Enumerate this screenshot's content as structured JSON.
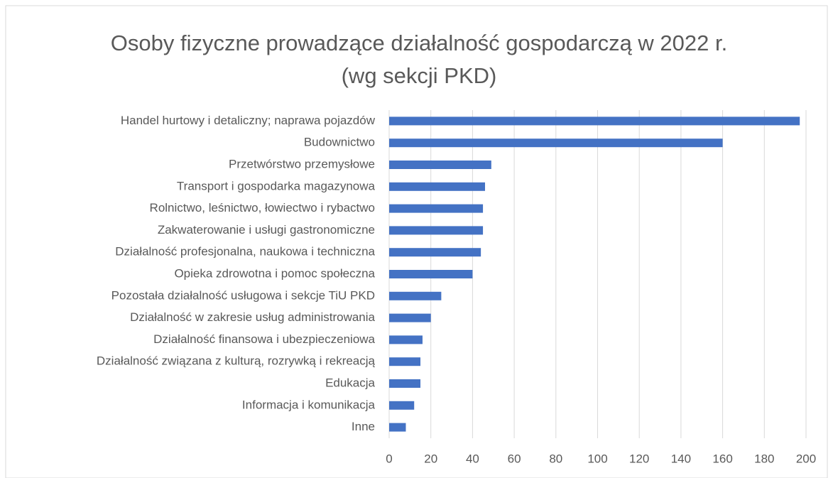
{
  "chart_data": {
    "type": "bar",
    "orientation": "horizontal",
    "title": "Osoby fizyczne prowadzące działalność gospodarczą w 2022 r. (wg sekcji PKD)",
    "categories": [
      "Handel hurtowy i detaliczny; naprawa pojazdów",
      "Budownictwo",
      "Przetwórstwo przemysłowe",
      "Transport i gospodarka magazynowa",
      "Rolnictwo, leśnictwo, łowiectwo i rybactwo",
      "Zakwaterowanie i usługi gastronomiczne",
      "Działalność profesjonalna, naukowa i techniczna",
      "Opieka zdrowotna i pomoc społeczna",
      "Pozostała działalność usługowa i sekcje TiU PKD",
      "Działalność w zakresie usług administrowania",
      "Działalność finansowa i ubezpieczeniowa",
      "Działalność związana z kulturą, rozrywką i rekreacją",
      "Edukacja",
      "Informacja i komunikacja",
      "Inne"
    ],
    "values": [
      197,
      160,
      49,
      46,
      45,
      45,
      44,
      40,
      25,
      20,
      16,
      15,
      15,
      12,
      8
    ],
    "color": "#4472c4",
    "xlim": [
      0,
      200
    ],
    "xticks": [
      0,
      20,
      40,
      60,
      80,
      100,
      120,
      140,
      160,
      180,
      200
    ],
    "grid": true
  }
}
